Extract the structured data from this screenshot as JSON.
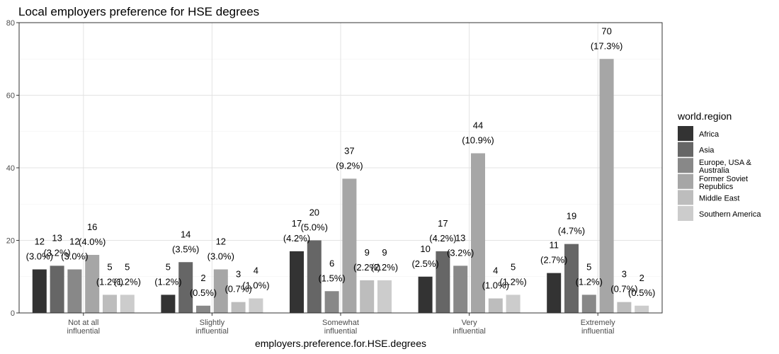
{
  "chart_data": {
    "type": "bar",
    "title": "Local employers preference for HSE degrees",
    "xlabel": "employers.preference.for.HSE.degrees",
    "ylabel": "",
    "ylim": [
      0,
      80
    ],
    "yticks": [
      "0",
      "20",
      "40",
      "60",
      "80"
    ],
    "grid": true,
    "legend_position": "right",
    "legend_title": "world.region",
    "categories": [
      [
        "Not at all",
        "influential"
      ],
      [
        "Slightly",
        "influential"
      ],
      [
        "Somewhat",
        "influential"
      ],
      [
        "Very",
        "influential"
      ],
      [
        "Extremely",
        "influential"
      ]
    ],
    "series": [
      {
        "name": [
          "Africa"
        ],
        "color": "#333333",
        "values": [
          12,
          5,
          17,
          10,
          11
        ],
        "labels": [
          "(3.0%)",
          "(1.2%)",
          "(4.2%)",
          "(2.5%)",
          "(2.7%)"
        ]
      },
      {
        "name": [
          "Asia"
        ],
        "color": "#666666",
        "values": [
          13,
          14,
          20,
          17,
          19
        ],
        "labels": [
          "(3.2%)",
          "(3.5%)",
          "(5.0%)",
          "(4.2%)",
          "(4.7%)"
        ]
      },
      {
        "name": [
          "Europe, USA &",
          "Australia"
        ],
        "color": "#888888",
        "values": [
          12,
          2,
          6,
          13,
          5
        ],
        "labels": [
          "(3.0%)",
          "(0.5%)",
          "(1.5%)",
          "(3.2%)",
          "(1.2%)"
        ]
      },
      {
        "name": [
          "Former Soviet",
          "Republics"
        ],
        "color": "#a6a6a6",
        "values": [
          16,
          12,
          37,
          44,
          70
        ],
        "labels": [
          "(4.0%)",
          "(3.0%)",
          "(9.2%)",
          "(10.9%)",
          "(17.3%)"
        ]
      },
      {
        "name": [
          "Middle East"
        ],
        "color": "#bdbdbd",
        "values": [
          5,
          3,
          9,
          4,
          3
        ],
        "labels": [
          "(1.2%)",
          "(0.7%)",
          "(2.2%)",
          "(1.0%)",
          "(0.7%)"
        ]
      },
      {
        "name": [
          "Southern America"
        ],
        "color": "#cccccc",
        "values": [
          5,
          4,
          9,
          5,
          2
        ],
        "labels": [
          "(1.2%)",
          "(1.0%)",
          "(2.2%)",
          "(1.2%)",
          "(0.5%)"
        ]
      }
    ]
  }
}
